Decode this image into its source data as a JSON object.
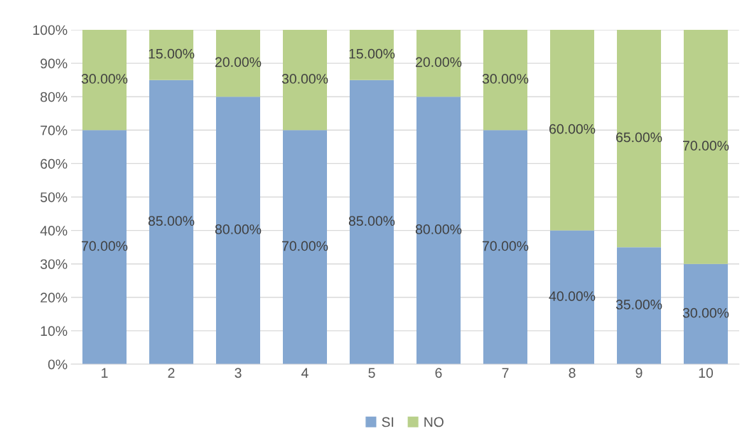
{
  "chart_data": {
    "type": "bar",
    "stacked": true,
    "categories": [
      "1",
      "2",
      "3",
      "4",
      "5",
      "6",
      "7",
      "8",
      "9",
      "10"
    ],
    "series": [
      {
        "name": "SI",
        "color": "#84a7d1",
        "values": [
          70,
          85,
          80,
          70,
          85,
          80,
          70,
          40,
          35,
          30
        ],
        "value_labels": [
          "70.00%",
          "85.00%",
          "80.00%",
          "70.00%",
          "85.00%",
          "80.00%",
          "70.00%",
          "40.00%",
          "35.00%",
          "30.00%"
        ]
      },
      {
        "name": "NO",
        "color": "#b9d08b",
        "values": [
          30,
          15,
          20,
          30,
          15,
          20,
          30,
          60,
          65,
          70
        ],
        "value_labels": [
          "30.00%",
          "15.00%",
          "20.00%",
          "30.00%",
          "15.00%",
          "20.00%",
          "30.00%",
          "60.00%",
          "65.00%",
          "70.00%"
        ]
      }
    ],
    "ylim": [
      0,
      100
    ],
    "yticks": [
      {
        "value": 0,
        "label": "0%"
      },
      {
        "value": 10,
        "label": "10%"
      },
      {
        "value": 20,
        "label": "20%"
      },
      {
        "value": 30,
        "label": "30%"
      },
      {
        "value": 40,
        "label": "40%"
      },
      {
        "value": 50,
        "label": "50%"
      },
      {
        "value": 60,
        "label": "60%"
      },
      {
        "value": 70,
        "label": "70%"
      },
      {
        "value": 80,
        "label": "80%"
      },
      {
        "value": 90,
        "label": "90%"
      },
      {
        "value": 100,
        "label": "100%"
      }
    ],
    "grid": "y",
    "legend": "bottom"
  }
}
